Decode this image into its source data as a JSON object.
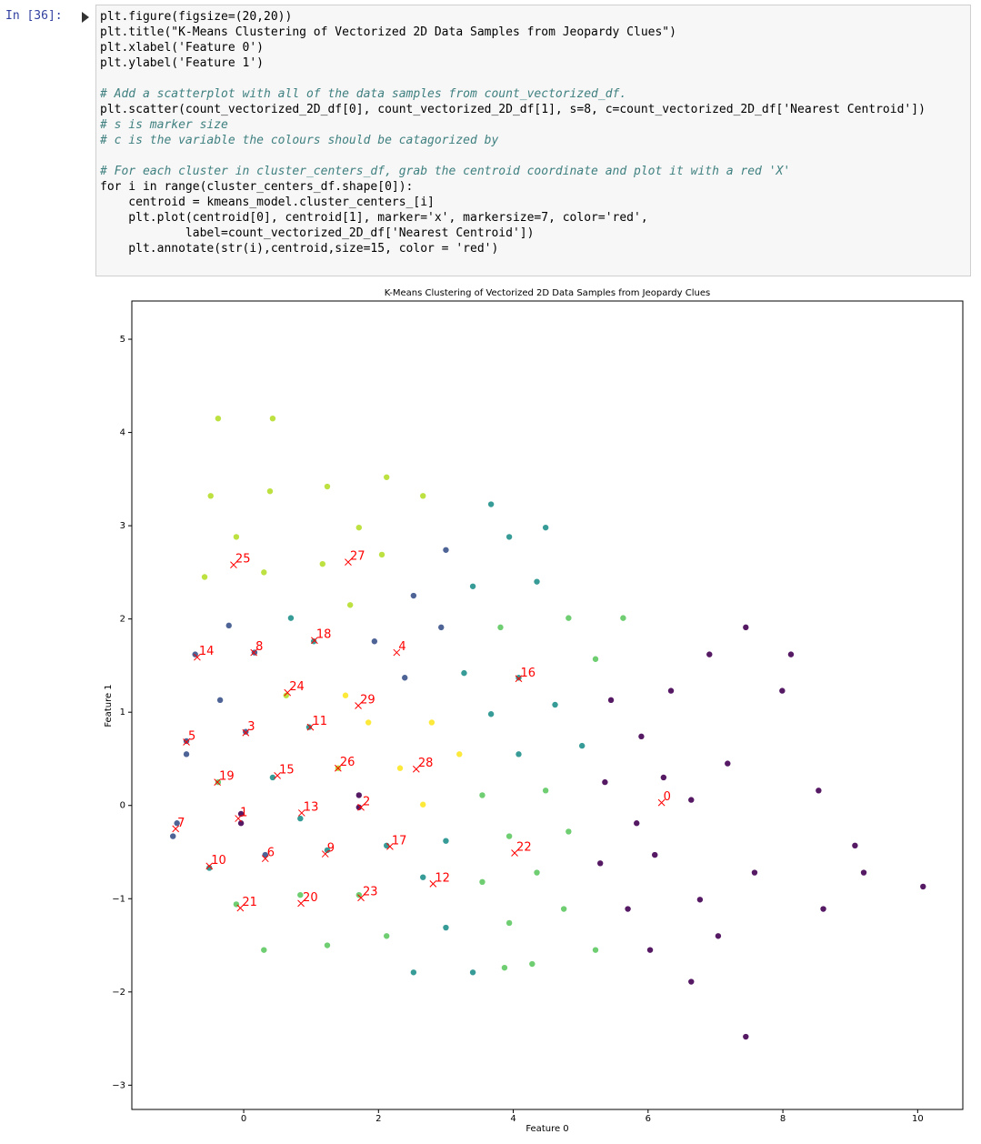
{
  "prompt": "In [36]:",
  "code_blocks": [
    [
      "plt.figure(figsize=(20,20))",
      "plt.title(\"K-Means Clustering of Vectorized 2D Data Samples from Jeopardy Clues\")",
      "plt.xlabel('Feature 0')",
      "plt.ylabel('Feature 1')"
    ],
    [
      "# Add a scatterplot with all of the data samples from count_vectorized_df.",
      "plt.scatter(count_vectorized_2D_df[0], count_vectorized_2D_df[1], s=8, c=count_vectorized_2D_df['Nearest Centroid'])",
      "# s is marker size",
      "# c is the variable the colours should be catagorized by"
    ],
    [
      "# For each cluster in cluster_centers_df, grab the centroid coordinate and plot it with a red 'X'",
      "for i in range(cluster_centers_df.shape[0]):",
      "    centroid = kmeans_model.cluster_centers_[i]",
      "    plt.plot(centroid[0], centroid[1], marker='x', markersize=7, color='red',",
      "            label=count_vectorized_2D_df['Nearest Centroid'])",
      "    plt.annotate(str(i),centroid,size=15, color = 'red')"
    ]
  ],
  "chart_data": {
    "type": "scatter",
    "title": "K-Means Clustering of Vectorized 2D Data Samples from Jeopardy Clues",
    "x_label": "Feature 0",
    "y_label": "Feature 1",
    "xlim": [
      -1.66,
      10.67
    ],
    "ylim": [
      -3.26,
      5.41
    ],
    "xticks": [
      0,
      2,
      4,
      6,
      8,
      10
    ],
    "yticks": [
      {
        "value": -3,
        "label": "−3"
      },
      {
        "value": -2,
        "label": "−2"
      },
      {
        "value": -1,
        "label": "−1"
      },
      0,
      1,
      2,
      3,
      4,
      5
    ],
    "series": [
      {
        "color": "#440154",
        "x": [
          5.45,
          5.9,
          6.34,
          5.36,
          5.83,
          6.23,
          5.29,
          5.7,
          6.1,
          6.64,
          6.77,
          7.18,
          7.58,
          6.64,
          7.04,
          7.45,
          7.99,
          8.53,
          9.07,
          6.03,
          6.91,
          7.45,
          8.12,
          8.6,
          9.2,
          10.08,
          -0.04,
          -0.04,
          1.71,
          1.71
        ],
        "y": [
          1.13,
          0.74,
          1.23,
          0.25,
          -0.19,
          0.3,
          -0.62,
          -1.11,
          -0.53,
          0.06,
          -1.01,
          0.45,
          -0.72,
          -1.89,
          -1.4,
          -2.48,
          1.23,
          0.16,
          -0.43,
          -1.55,
          1.62,
          1.91,
          1.62,
          -1.11,
          -0.72,
          -0.87,
          -0.09,
          -0.19,
          -0.02,
          0.11
        ]
      },
      {
        "color": "#3b528b",
        "x": [
          -0.85,
          -0.85,
          0.03,
          -0.99,
          -1.05,
          -0.35,
          -0.22,
          0.16,
          0.32,
          -0.72,
          1.94,
          2.39,
          2.52,
          2.93,
          3.0
        ],
        "y": [
          0.69,
          0.55,
          0.79,
          -0.19,
          -0.33,
          1.13,
          1.93,
          1.64,
          -0.53,
          1.62,
          1.76,
          1.37,
          2.25,
          1.91,
          2.74
        ]
      },
      {
        "color": "#21918c",
        "x": [
          0.97,
          0.84,
          1.24,
          0.43,
          -0.51,
          2.12,
          2.66,
          3.0,
          3.0,
          0.7,
          1.04,
          3.27,
          3.67,
          3.4,
          4.08,
          4.35,
          4.62,
          4.08,
          5.02,
          3.67,
          3.94,
          2.52,
          3.4,
          4.48
        ],
        "y": [
          0.84,
          -0.14,
          -0.48,
          0.3,
          -0.67,
          -0.43,
          -0.77,
          -0.38,
          -1.31,
          2.01,
          1.76,
          1.42,
          0.98,
          2.35,
          1.37,
          2.4,
          1.08,
          0.55,
          0.64,
          3.23,
          2.88,
          -1.79,
          -1.79,
          2.98
        ]
      },
      {
        "color": "#5ec962",
        "x": [
          -0.38,
          -0.11,
          0.84,
          1.71,
          3.54,
          3.94,
          4.48,
          4.82,
          3.54,
          3.94,
          4.35,
          4.75,
          2.12,
          1.24,
          0.3,
          3.87,
          4.28,
          5.22,
          5.22,
          4.82,
          3.81,
          5.63
        ],
        "y": [
          0.25,
          -1.06,
          -0.96,
          -0.96,
          0.11,
          -0.33,
          0.16,
          -0.28,
          -0.82,
          -1.26,
          -0.72,
          -1.11,
          -1.4,
          -1.5,
          -1.55,
          -1.74,
          -1.7,
          -1.55,
          1.57,
          2.01,
          1.91,
          2.01
        ]
      },
      {
        "color": "#fde725",
        "x": [
          1.51,
          1.85,
          2.32,
          2.79,
          2.66,
          3.2
        ],
        "y": [
          1.18,
          0.89,
          0.4,
          0.89,
          0.01,
          0.55
        ]
      },
      {
        "color": "#b5de2b",
        "x": [
          -0.58,
          0.3,
          1.17,
          1.58,
          2.05,
          0.63,
          1.4,
          -0.49,
          0.39,
          1.24,
          1.71,
          2.12,
          2.66,
          -0.38,
          0.43,
          -0.11
        ],
        "y": [
          2.45,
          2.5,
          2.59,
          2.15,
          2.69,
          1.18,
          0.4,
          3.32,
          3.37,
          3.42,
          2.98,
          3.52,
          3.32,
          4.15,
          4.15,
          2.88
        ]
      }
    ],
    "centroids": {
      "color": "red",
      "labels": [
        "0",
        "1",
        "2",
        "3",
        "4",
        "5",
        "6",
        "7",
        "8",
        "9",
        "10",
        "11",
        "12",
        "13",
        "14",
        "15",
        "16",
        "17",
        "18",
        "19",
        "20",
        "21",
        "22",
        "23",
        "24",
        "25",
        "26",
        "27",
        "28",
        "29"
      ],
      "x": [
        6.2,
        -0.08,
        1.74,
        0.03,
        2.27,
        -0.85,
        0.32,
        -1.01,
        0.15,
        1.21,
        -0.51,
        0.99,
        2.81,
        0.86,
        -0.69,
        0.5,
        4.08,
        2.17,
        1.05,
        -0.39,
        0.85,
        -0.05,
        4.02,
        1.74,
        0.65,
        -0.15,
        1.4,
        1.55,
        2.56,
        1.7
      ],
      "y": [
        0.03,
        -0.14,
        -0.02,
        0.78,
        1.64,
        0.68,
        -0.57,
        -0.25,
        1.64,
        -0.52,
        -0.65,
        0.84,
        -0.84,
        -0.08,
        1.59,
        0.32,
        1.36,
        -0.44,
        1.77,
        0.25,
        -1.05,
        -1.1,
        -0.51,
        -0.99,
        1.21,
        2.58,
        0.4,
        2.61,
        0.39,
        1.07
      ]
    }
  }
}
